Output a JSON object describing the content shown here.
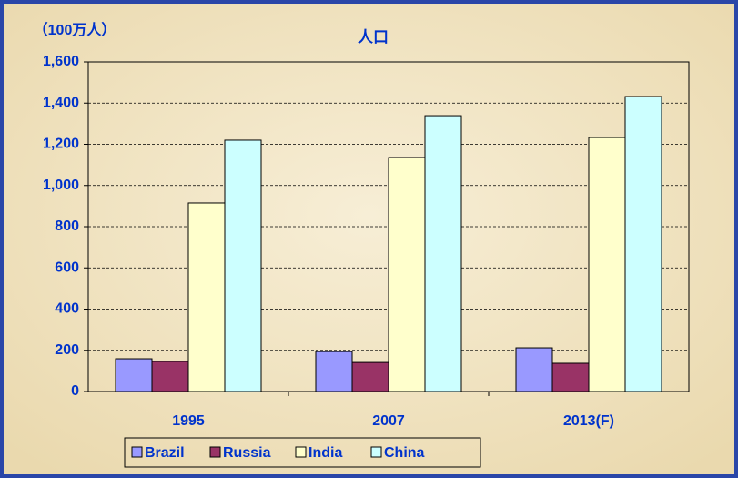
{
  "chart_data": {
    "type": "bar",
    "title": "人口",
    "y_label": "（100万人）",
    "categories": [
      "1995",
      "2007",
      "2013(F)"
    ],
    "series": [
      {
        "name": "Brazil",
        "color": "#9999ff",
        "values": [
          159,
          194,
          212
        ]
      },
      {
        "name": "Russia",
        "color": "#993366",
        "values": [
          146,
          141,
          137
        ]
      },
      {
        "name": "India",
        "color": "#ffffcc",
        "values": [
          915,
          1136,
          1233
        ]
      },
      {
        "name": "China",
        "color": "#ccffff",
        "values": [
          1220,
          1339,
          1432
        ]
      }
    ],
    "ylim": [
      0,
      1600
    ],
    "yticks": [
      0,
      200,
      400,
      600,
      800,
      {
        "value": 1000,
        "label": "1,000"
      },
      {
        "value": 1200,
        "label": "1,200"
      },
      {
        "value": 1400,
        "label": "1,400"
      },
      {
        "value": 1600,
        "label": "1,600"
      }
    ],
    "grid": true
  }
}
